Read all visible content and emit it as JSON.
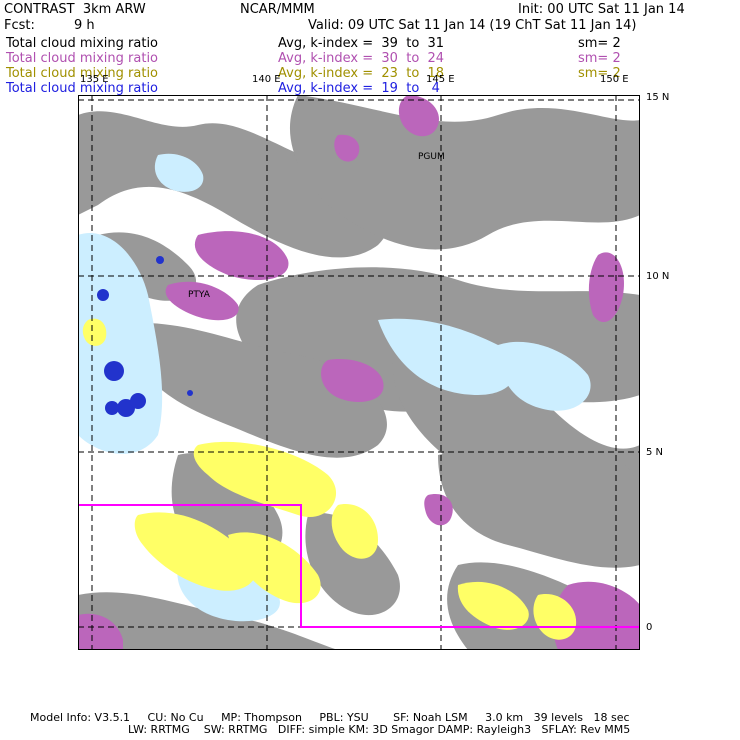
{
  "header": {
    "left_title": "CONTRAST  3km ARW",
    "center_title": "NCAR/MMM",
    "init": "Init: 00 UTC Sat 11 Jan 14",
    "fcst_label": "Fcst:",
    "fcst_value": "9 h",
    "valid": "Valid: 09 UTC Sat 11 Jan 14 (19 ChT Sat 11 Jan 14)"
  },
  "fields": [
    {
      "name": "Total cloud mixing ratio",
      "avg": "Avg, k-index =  39  to  31",
      "sm": "sm= 2",
      "color": "#000000"
    },
    {
      "name": "Total cloud mixing ratio",
      "avg": "Avg, k-index =  30  to  24",
      "sm": "sm= 2",
      "color": "#b050b0"
    },
    {
      "name": "Total cloud mixing ratio",
      "avg": "Avg, k-index =  23  to  18",
      "sm": "sm= 2",
      "color": "#a09000"
    },
    {
      "name": "Total cloud mixing ratio",
      "avg": "Avg, k-index =  19  to   4",
      "sm": "",
      "color": "#2020e0"
    }
  ],
  "map": {
    "lon_labels": [
      "135 E",
      "140 E",
      "145 E",
      "150 E"
    ],
    "lat_labels": [
      "15 N",
      "10 N",
      "5 N",
      "0"
    ],
    "place_labels": [
      "PGUM",
      "PTYA"
    ],
    "colors": {
      "high_cloud": "#999999",
      "mid_cloud": "#bb66bb",
      "low_cloud": "#ffff66",
      "shallow_cloud": "#cceeff",
      "deep_core": "#2233cc",
      "box": "#ff00ff"
    }
  },
  "footer": {
    "line1": "Model Info: V3.5.1     CU: No Cu     MP: Thompson     PBL: YSU       SF: Noah LSM     3.0 km   39 levels   18 sec",
    "line2": "LW: RRTMG    SW: RRTMG   DIFF: simple KM: 3D Smagor DAMP: Rayleigh3   SFLAY: Rev MM5"
  }
}
